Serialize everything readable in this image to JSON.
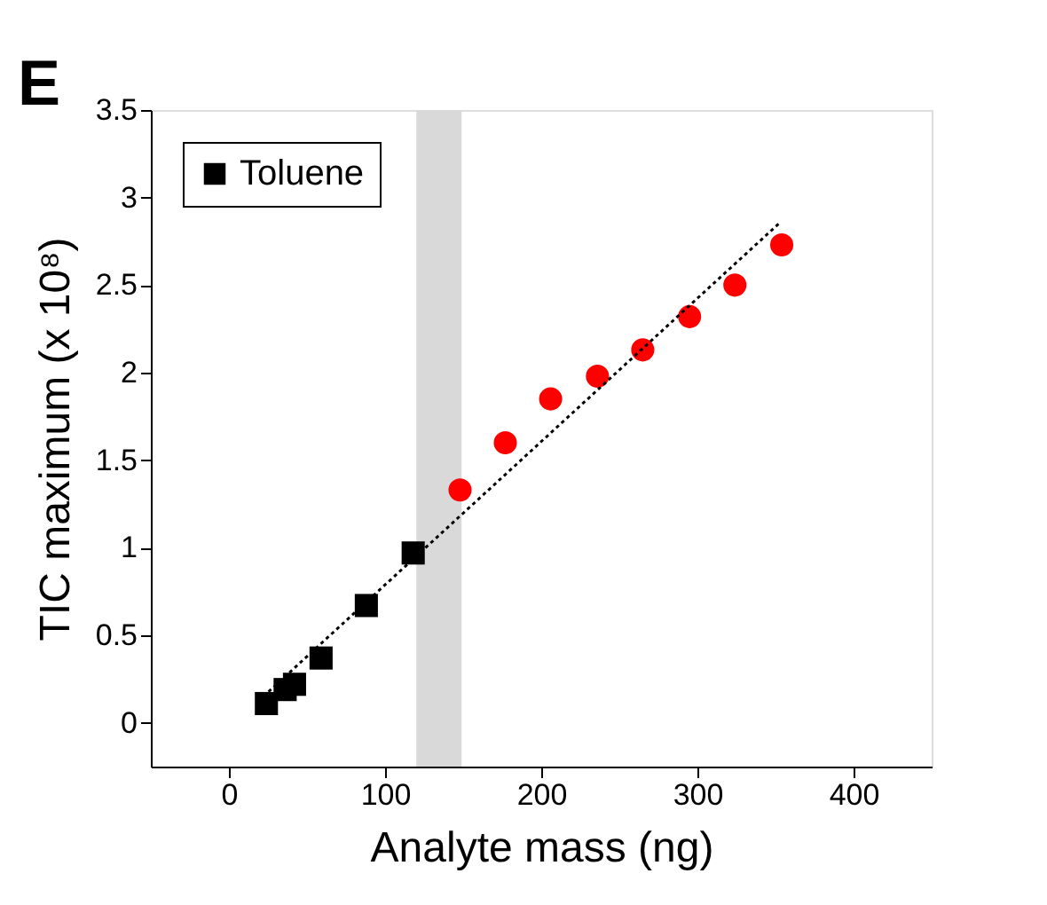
{
  "chart_data": {
    "type": "scatter",
    "xlabel": "Analyte mass (ng)",
    "ylabel": "TIC maximum (x 10⁸)",
    "annotations": [
      "E"
    ],
    "xlim": [
      -50,
      450
    ],
    "xticks": [
      0,
      100,
      200,
      300,
      400
    ],
    "ylim": [
      -0.25,
      3.5
    ],
    "yticks": [
      0,
      0.5,
      1,
      1.5,
      2,
      2.5,
      3,
      3.5
    ],
    "grid": false,
    "legend": "top left",
    "series": [
      {
        "name": "Toluene",
        "color": "#000000",
        "marker": "square",
        "x": [
          24,
          36,
          42,
          59,
          88,
          118
        ],
        "values": [
          0.11,
          0.19,
          0.22,
          0.37,
          0.67,
          0.97
        ]
      },
      {
        "color": "#ff0000",
        "marker": "circle",
        "x": [
          148,
          177,
          206,
          236,
          265,
          295,
          324,
          354
        ],
        "values": [
          1.33,
          1.6,
          1.85,
          1.98,
          2.13,
          2.32,
          2.5,
          2.73
        ]
      },
      {
        "type": "line",
        "line_style": "dotted",
        "marker": "none",
        "color": "#000000",
        "x": [
          22,
          352
        ],
        "values": [
          0.15,
          2.85
        ]
      }
    ],
    "bands": [
      {
        "axis": "x",
        "from": 120,
        "to": 149,
        "color": "#d9d9d9"
      }
    ]
  }
}
